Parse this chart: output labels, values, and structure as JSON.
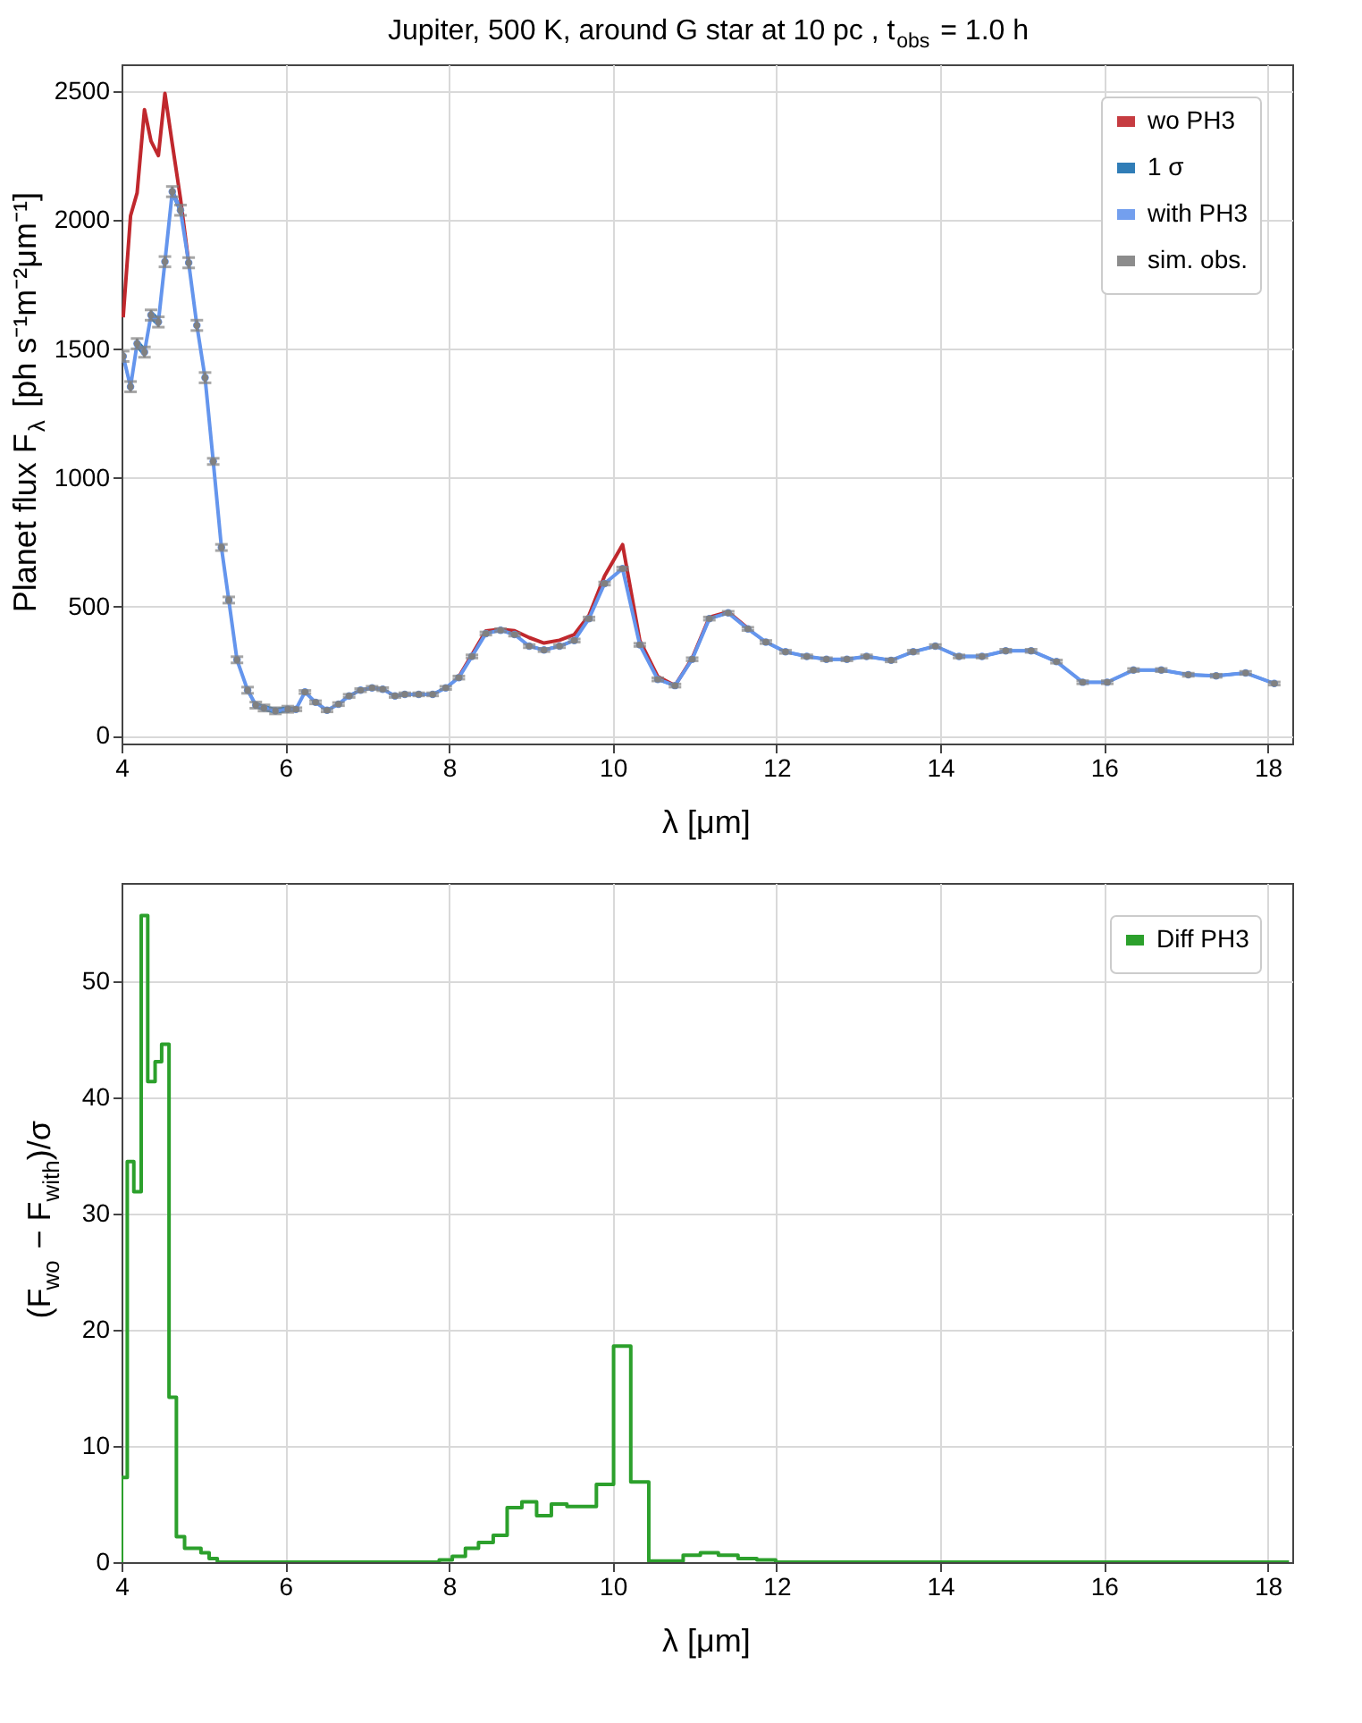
{
  "chart_data": [
    {
      "type": "line",
      "title": "Jupiter, 500 K, around G star at 10 pc , t$_{obs}$ = 1.0 h",
      "xlabel": "λ [μm]",
      "ylabel": "Planet flux F$_{λ}$ [ph s⁻¹m⁻²μm⁻¹]",
      "x": [
        4.02,
        4.11,
        4.19,
        4.28,
        4.36,
        4.45,
        4.53,
        4.62,
        4.72,
        4.82,
        4.92,
        5.02,
        5.12,
        5.22,
        5.31,
        5.41,
        5.54,
        5.64,
        5.74,
        5.88,
        6.03,
        6.13,
        6.24,
        6.37,
        6.51,
        6.65,
        6.78,
        6.92,
        7.06,
        7.19,
        7.34,
        7.46,
        7.63,
        7.8,
        7.96,
        8.12,
        8.28,
        8.45,
        8.63,
        8.8,
        8.98,
        9.16,
        9.35,
        9.53,
        9.71,
        9.9,
        10.12,
        10.33,
        10.55,
        10.76,
        10.97,
        11.18,
        11.41,
        11.65,
        11.87,
        12.11,
        12.37,
        12.61,
        12.86,
        13.1,
        13.4,
        13.67,
        13.94,
        14.23,
        14.51,
        14.8,
        15.11,
        15.42,
        15.74,
        16.04,
        16.36,
        16.7,
        17.03,
        17.37,
        17.73,
        18.08
      ],
      "series": [
        {
          "name": "wo PH3",
          "type": "line",
          "color": "#c0282d",
          "values": [
            1623,
            2017,
            2106,
            2429,
            2307,
            2251,
            2492,
            2296,
            2084,
            1835,
            null,
            null,
            null,
            null,
            null,
            null,
            null,
            null,
            null,
            null,
            null,
            null,
            null,
            null,
            null,
            null,
            null,
            null,
            null,
            null,
            null,
            null,
            null,
            null,
            null,
            228,
            314,
            406,
            412,
            407,
            380,
            359,
            370,
            392,
            467,
            619,
            741,
            369,
            229,
            194,
            300,
            459,
            480,
            416,
            null,
            null,
            null,
            null,
            null,
            null,
            null,
            null,
            null,
            null,
            null,
            null,
            null,
            null,
            null,
            null,
            null,
            null,
            null,
            null,
            null,
            null
          ]
        },
        {
          "name": "1 σ",
          "type": "area",
          "color": "#1a6fb0",
          "values": [
            null,
            null,
            null,
            null,
            null,
            null,
            null,
            null,
            null,
            null,
            null,
            null,
            null,
            null,
            null,
            null,
            null,
            null,
            null,
            null,
            null,
            null,
            null,
            null,
            null,
            null,
            null,
            null,
            null,
            null,
            null,
            null,
            null,
            null,
            null,
            null,
            null,
            null,
            null,
            null,
            null,
            null,
            null,
            null,
            null,
            null,
            null,
            null,
            null,
            null,
            null,
            null,
            null,
            null,
            null,
            null,
            null,
            null,
            null,
            null,
            null,
            null,
            null,
            null,
            null,
            null,
            null,
            null,
            null,
            null,
            null,
            null,
            null,
            null,
            null,
            null
          ],
          "lower": [
            1452,
            1334,
            1501,
            1468,
            1612,
            1585,
            1819,
            2091,
            2019,
            1815,
            1572,
            1369,
            1052,
            718,
            514,
            282,
            164,
            106,
            95,
            84,
            90,
            96,
            163,
            123,
            92,
            116,
            148,
            170,
            179,
            174,
            148,
            154,
            154,
            154,
            179,
            219,
            301,
            390,
            403,
            386,
            341,
            326,
            341,
            363,
            448,
            584,
            642,
            346,
            212,
            188,
            290,
            448,
            470,
            408,
            357,
            319,
            301,
            290,
            290,
            301,
            286,
            319,
            341,
            301,
            301,
            323,
            323,
            281,
            201,
            201,
            248,
            248,
            230,
            226,
            237,
            196
          ],
          "upper": [
            1492,
            1374,
            1541,
            1508,
            1652,
            1625,
            1859,
            2131,
            2059,
            1855,
            1612,
            1409,
            1076,
            742,
            538,
            306,
            188,
            130,
            119,
            108,
            114,
            108,
            175,
            135,
            104,
            128,
            160,
            182,
            191,
            186,
            160,
            166,
            166,
            166,
            191,
            231,
            313,
            402,
            415,
            398,
            353,
            338,
            353,
            375,
            460,
            596,
            654,
            358,
            224,
            200,
            302,
            460,
            482,
            420,
            369,
            331,
            313,
            302,
            302,
            313,
            298,
            331,
            353,
            313,
            313,
            335,
            335,
            293,
            213,
            213,
            260,
            260,
            242,
            238,
            249,
            208
          ]
        },
        {
          "name": "with PH3",
          "type": "line",
          "marker": "circle",
          "color": "#6495ed",
          "values": [
            1472,
            1354,
            1521,
            1488,
            1632,
            1605,
            1839,
            2111,
            2039,
            1835,
            1592,
            1389,
            1064,
            730,
            526,
            294,
            176,
            118,
            107,
            96,
            102,
            102,
            169,
            129,
            98,
            122,
            154,
            176,
            185,
            180,
            154,
            160,
            160,
            160,
            185,
            225,
            307,
            396,
            409,
            392,
            347,
            332,
            347,
            369,
            454,
            590,
            648,
            352,
            218,
            194,
            296,
            454,
            476,
            414,
            363,
            325,
            307,
            296,
            296,
            307,
            292,
            325,
            347,
            307,
            307,
            329,
            329,
            287,
            207,
            207,
            254,
            254,
            236,
            232,
            243,
            202
          ]
        },
        {
          "name": "sim. obs.",
          "type": "scatter",
          "marker": "circle",
          "color": "#808080",
          "values": [
            1472,
            1354,
            1521,
            1488,
            1632,
            1605,
            1839,
            2111,
            2039,
            1835,
            1592,
            1389,
            1064,
            730,
            526,
            294,
            176,
            118,
            107,
            96,
            102,
            102,
            169,
            129,
            98,
            122,
            154,
            176,
            185,
            180,
            154,
            160,
            160,
            160,
            185,
            225,
            307,
            396,
            409,
            392,
            347,
            332,
            347,
            369,
            454,
            590,
            648,
            352,
            218,
            194,
            296,
            454,
            476,
            414,
            363,
            325,
            307,
            296,
            296,
            307,
            292,
            325,
            347,
            307,
            307,
            329,
            329,
            287,
            207,
            207,
            254,
            254,
            236,
            232,
            243,
            202
          ],
          "errors": [
            20,
            20,
            20,
            20,
            20,
            20,
            20,
            20,
            20,
            20,
            20,
            20,
            12,
            12,
            12,
            12,
            12,
            12,
            12,
            12,
            12,
            6,
            6,
            6,
            6,
            6,
            6,
            6,
            6,
            6,
            6,
            6,
            6,
            6,
            6,
            6,
            6,
            6,
            6,
            6,
            6,
            6,
            6,
            6,
            6,
            6,
            6,
            6,
            6,
            6,
            6,
            6,
            6,
            6,
            6,
            6,
            6,
            6,
            6,
            6,
            6,
            6,
            6,
            6,
            6,
            6,
            6,
            6,
            6,
            6,
            6,
            6,
            6,
            6,
            6,
            6
          ]
        }
      ],
      "xlim": [
        4,
        18.3
      ],
      "xticks": [
        4,
        6,
        8,
        10,
        12,
        14,
        16,
        18
      ],
      "ylim": [
        -31,
        2605
      ],
      "yticks": [
        0,
        500,
        1000,
        1500,
        2000,
        2500
      ],
      "grid": true,
      "legend": "top right"
    },
    {
      "type": "histogram",
      "xlabel": "λ [μm]",
      "ylabel": "(F$_{wo}$ − F$_{with}$)/σ",
      "bins": [
        4.0,
        4.07,
        4.15,
        4.24,
        4.32,
        4.41,
        4.49,
        4.58,
        4.67,
        4.77,
        4.87,
        4.97,
        5.07,
        5.17,
        5.27,
        5.36,
        5.47,
        5.59,
        5.69,
        5.81,
        5.95,
        6.08,
        6.19,
        6.3,
        6.44,
        6.58,
        6.71,
        6.85,
        6.99,
        7.12,
        7.26,
        7.4,
        7.55,
        7.71,
        7.88,
        8.04,
        8.2,
        8.36,
        8.54,
        8.71,
        8.89,
        9.07,
        9.25,
        9.44,
        9.62,
        9.8,
        10.01,
        10.22,
        10.44,
        10.65,
        10.86,
        11.07,
        11.29,
        11.53,
        11.76,
        11.99,
        12.24,
        12.49,
        12.73,
        12.98,
        13.25,
        13.53,
        13.8,
        14.08,
        14.37,
        14.65,
        14.95,
        15.26,
        15.58,
        15.89,
        16.2,
        16.53,
        16.86,
        17.2,
        17.55,
        17.9,
        18.26
      ],
      "series": [
        {
          "name": "Diff PH3",
          "color": "#2ca02c",
          "values": [
            7.3,
            34.5,
            31.9,
            55.7,
            41.4,
            43.1,
            44.6,
            14.2,
            2.2,
            1.2,
            1.2,
            0.8,
            0.3,
            0,
            0,
            0,
            0,
            0,
            0,
            0,
            0,
            0,
            0,
            0,
            0,
            0,
            0,
            0,
            0,
            0,
            0,
            0,
            0,
            0,
            0.2,
            0.5,
            1.2,
            1.7,
            2.3,
            4.7,
            5.2,
            4.0,
            5.0,
            4.8,
            4.8,
            6.7,
            18.6,
            6.9,
            0.1,
            0.1,
            0.6,
            0.8,
            0.6,
            0.3,
            0.2,
            0,
            0,
            0,
            0,
            0,
            0,
            0,
            0,
            0,
            0,
            0,
            0,
            0,
            0,
            0,
            0,
            0,
            0,
            0,
            0,
            0
          ]
        }
      ],
      "xlim": [
        4,
        18.3
      ],
      "xticks": [
        4,
        6,
        8,
        10,
        12,
        14,
        16,
        18
      ],
      "ylim": [
        0,
        58.5
      ],
      "yticks": [
        0,
        10,
        20,
        30,
        40,
        50
      ],
      "grid": true,
      "legend": "top right"
    }
  ]
}
